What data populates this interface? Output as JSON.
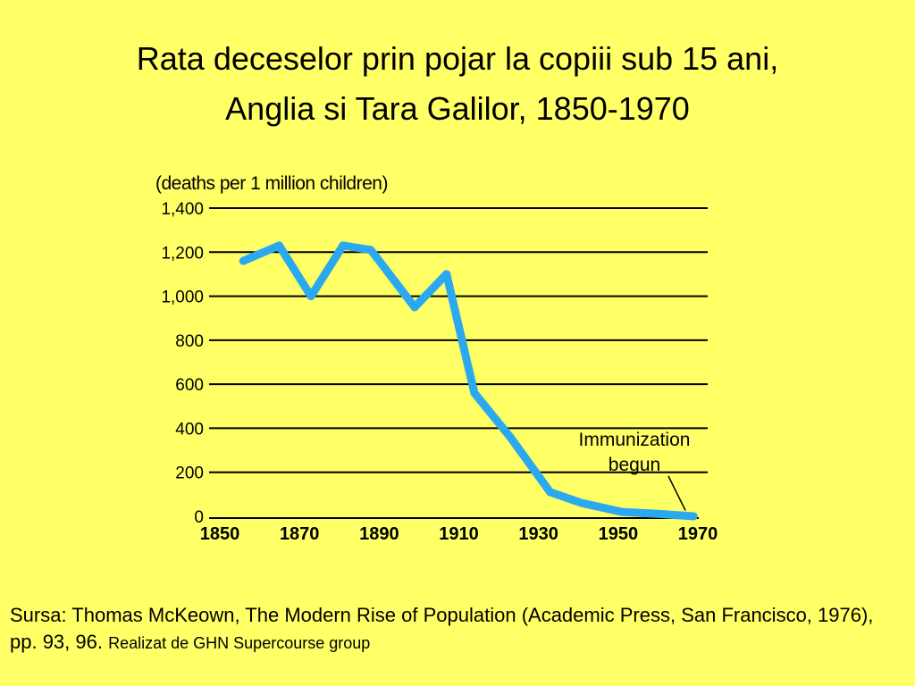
{
  "title": {
    "line1": "Rata deceselor prin pojar la copiii sub 15 ani,",
    "line2": "Anglia si Tara Galilor, 1850-1970"
  },
  "chart_data": {
    "type": "line",
    "ylabel": "(deaths per 1 million children)",
    "xlabel": "",
    "xlim": [
      1850,
      1970
    ],
    "ylim": [
      0,
      1400
    ],
    "x_ticks": [
      1850,
      1870,
      1890,
      1910,
      1930,
      1950,
      1970
    ],
    "x_tick_labels": [
      "1850",
      "1870",
      "1890",
      "1910",
      "1930",
      "1950",
      "1970"
    ],
    "y_ticks": [
      0,
      200,
      400,
      600,
      800,
      1000,
      1200,
      1400
    ],
    "y_tick_labels": [
      "0",
      "200",
      "400",
      "600",
      "800",
      "1,000",
      "1,200",
      "1,400"
    ],
    "grid": true,
    "series": [
      {
        "color": "#2aa8f0",
        "x": [
          1855,
          1864,
          1872,
          1880,
          1887,
          1898,
          1906,
          1913,
          1922,
          1932,
          1940,
          1950,
          1960,
          1968
        ],
        "y": [
          1160,
          1230,
          1000,
          1230,
          1210,
          950,
          1100,
          560,
          360,
          110,
          60,
          20,
          10,
          0
        ]
      }
    ],
    "annotations": [
      {
        "text_line1": "Immunization",
        "text_line2": "begun",
        "target_x": 1966,
        "target_y": 10
      }
    ]
  },
  "source": {
    "main": "Sursa: Thomas McKeown, The Modern Rise of Population (Academic Press, San Francisco, 1976), pp. 93, 96.",
    "small": "Realizat de GHN Supercourse group"
  }
}
